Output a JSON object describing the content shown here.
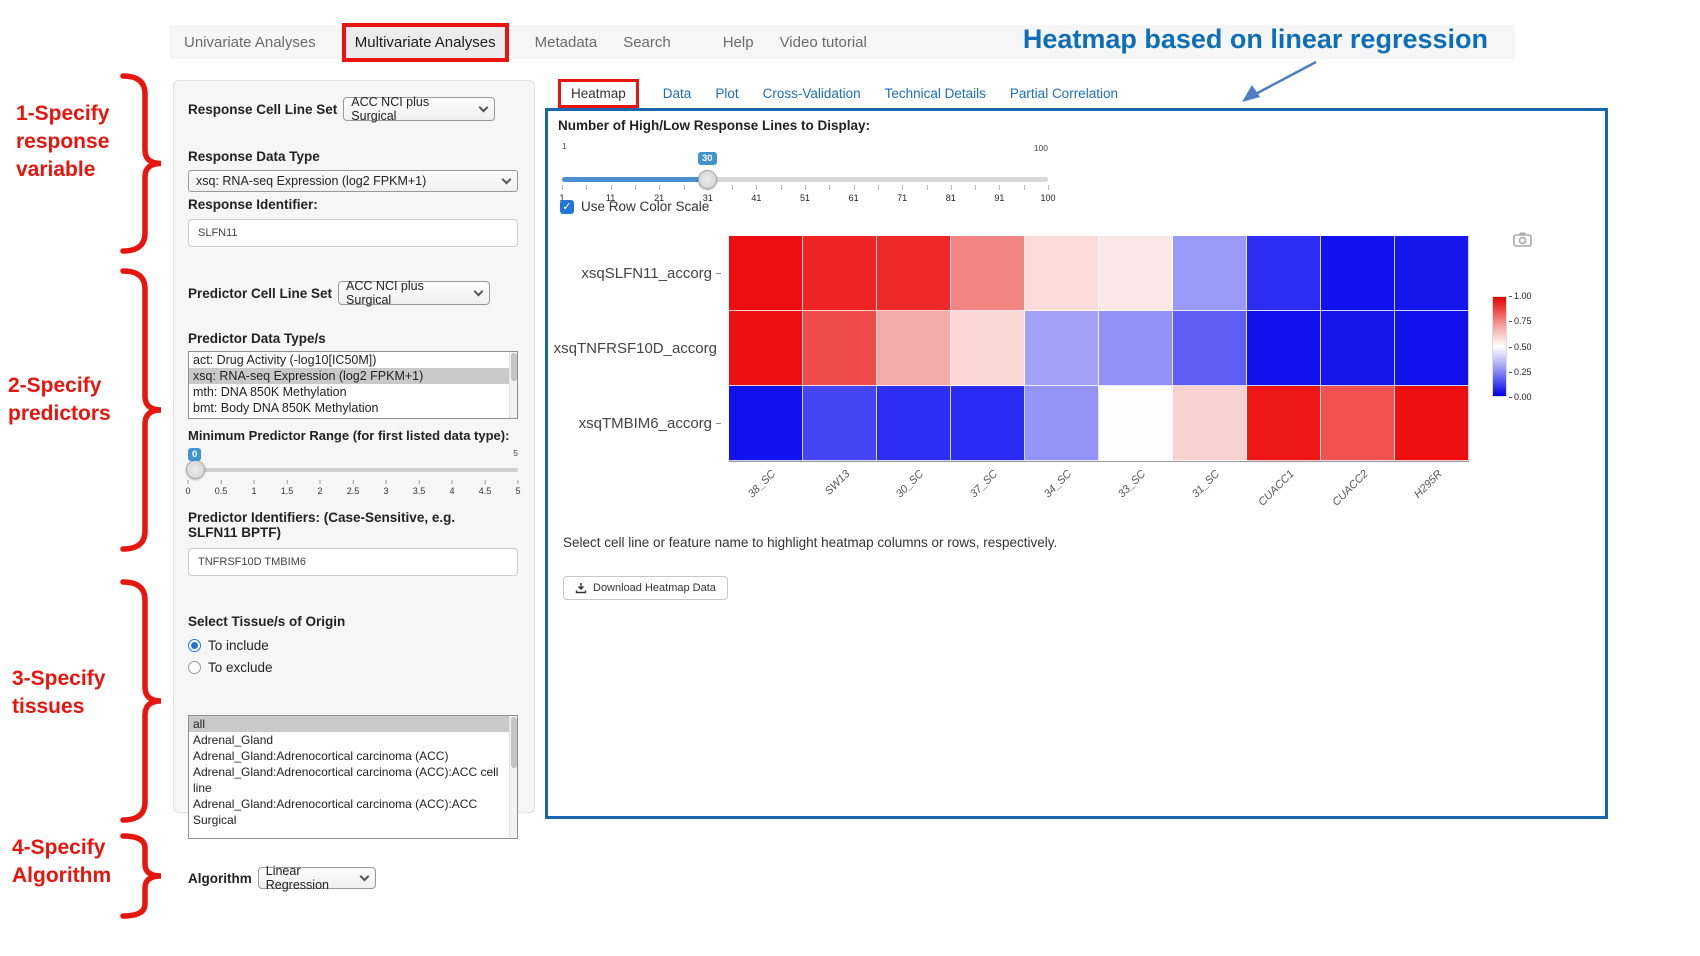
{
  "colors": {
    "annotation_red": "#e8150e",
    "heading_blue": "#0e6fb8",
    "panel_border_blue": "#1766ae",
    "link_blue": "#1b6fba",
    "slider_blue": "#4a8fd2",
    "control_blue": "#2277d6"
  },
  "icons": {
    "check": "✓",
    "camera": "camera",
    "download": "download-arrow",
    "dropdown": "chevron-down"
  },
  "nav": {
    "items": [
      {
        "label": "Univariate Analyses",
        "active": false,
        "boxed": false
      },
      {
        "label": "Multivariate Analyses",
        "active": true,
        "boxed": true
      },
      {
        "label": "Metadata",
        "active": false,
        "boxed": false
      },
      {
        "label": "Search",
        "active": false,
        "boxed": false
      },
      {
        "label": "Help",
        "active": false,
        "boxed": false
      },
      {
        "label": "Video tutorial",
        "active": false,
        "boxed": false
      }
    ]
  },
  "annotations": {
    "heading": "Heatmap based on linear regression",
    "steps": [
      {
        "lines": [
          "1-Specify",
          "response",
          "variable"
        ]
      },
      {
        "lines": [
          "2-Specify",
          "predictors"
        ]
      },
      {
        "lines": [
          "3-Specify",
          "tissues"
        ]
      },
      {
        "lines": [
          "4-Specify",
          "Algorithm"
        ]
      }
    ]
  },
  "sidebar": {
    "response_cell_line_set": {
      "label": "Response Cell Line Set",
      "value": "ACC NCI plus Surgical"
    },
    "response_data_type": {
      "label": "Response Data Type",
      "value": "xsq: RNA-seq Expression (log2 FPKM+1)"
    },
    "response_identifier": {
      "label": "Response Identifier:",
      "value": "SLFN11"
    },
    "predictor_cell_line_set": {
      "label": "Predictor Cell Line Set",
      "value": "ACC NCI plus Surgical"
    },
    "predictor_data_types": {
      "label": "Predictor Data Type/s",
      "options": [
        "act: Drug Activity (-log10[IC50M])",
        "xsq: RNA-seq Expression (log2 FPKM+1)",
        "mth: DNA 850K Methylation",
        "bmt: Body DNA 850K Methylation"
      ],
      "selected_index": 1
    },
    "min_predictor_range": {
      "label": "Minimum Predictor Range (for first listed data type):",
      "value": "0",
      "max_label": "5",
      "ticks": [
        "0",
        "0.5",
        "1",
        "1.5",
        "2",
        "2.5",
        "3",
        "3.5",
        "4",
        "4.5",
        "5"
      ]
    },
    "predictor_identifiers": {
      "label": "Predictor Identifiers: (Case-Sensitive, e.g. SLFN11 BPTF)",
      "value": "TNFRSF10D TMBIM6"
    },
    "tissue": {
      "label": "Select Tissue/s of Origin",
      "radios": [
        {
          "label": "To include",
          "checked": true
        },
        {
          "label": "To exclude",
          "checked": false
        }
      ],
      "options": [
        "all",
        "Adrenal_Gland",
        "Adrenal_Gland:Adrenocortical carcinoma (ACC)",
        "Adrenal_Gland:Adrenocortical carcinoma (ACC):ACC cell line",
        "Adrenal_Gland:Adrenocortical carcinoma (ACC):ACC Surgical"
      ],
      "selected_index": 0
    },
    "algorithm": {
      "label": "Algorithm",
      "value": "Linear Regression"
    }
  },
  "tabs": [
    {
      "label": "Heatmap",
      "active": true,
      "boxed": true
    },
    {
      "label": "Data",
      "active": false,
      "boxed": false
    },
    {
      "label": "Plot",
      "active": false,
      "boxed": false
    },
    {
      "label": "Cross-Validation",
      "active": false,
      "boxed": false
    },
    {
      "label": "Technical Details",
      "active": false,
      "boxed": false
    },
    {
      "label": "Partial Correlation",
      "active": false,
      "boxed": false
    }
  ],
  "main": {
    "slider": {
      "label": "Number of High/Low Response Lines to Display:",
      "min_label": "1",
      "max_label": "100",
      "value": "30",
      "ticks": [
        "1",
        "11",
        "21",
        "31",
        "41",
        "51",
        "61",
        "71",
        "81",
        "91",
        "100"
      ]
    },
    "row_color_checkbox": {
      "label": "Use Row Color Scale",
      "checked": true
    },
    "help_text": "Select cell line or feature name to highlight heatmap columns or rows, respectively.",
    "download_button": "Download Heatmap Data"
  },
  "heatmap": {
    "columns": [
      "38_SC",
      "SW13",
      "30_SC",
      "37_SC",
      "34_SC",
      "33_SC",
      "31_SC",
      "CUACC1",
      "CUACC2",
      "H295R"
    ],
    "rows": [
      {
        "label": "xsqSLFN11_accorg",
        "colors": [
          "#ed0f0f",
          "#ee2323",
          "#ee2727",
          "#f38484",
          "#fbdbd9",
          "#fce8e6",
          "#9a9af8",
          "#2d2df3",
          "#1212ee",
          "#1616ef"
        ]
      },
      {
        "label": "xsqTNFRSF10D_accorg",
        "colors": [
          "#ee1111",
          "#f04b4b",
          "#f5a9a8",
          "#fbd8d6",
          "#a2a2f8",
          "#9191f6",
          "#5e5ef5",
          "#1212ee",
          "#1515ee",
          "#1111ee"
        ]
      },
      {
        "label": "xsqTMBIM6_accorg",
        "colors": [
          "#1111ee",
          "#4545f6",
          "#2d2df3",
          "#2b2bf3",
          "#9494f7",
          "#fffdfd",
          "#f8d2d1",
          "#ee1616",
          "#f05151",
          "#ed0f0f"
        ]
      }
    ],
    "colorbar": {
      "tick_labels": [
        "1.00",
        "0.75",
        "0.50",
        "0.25",
        "0.00"
      ]
    }
  },
  "chart_data": {
    "type": "heatmap",
    "x": [
      "38_SC",
      "SW13",
      "30_SC",
      "37_SC",
      "34_SC",
      "33_SC",
      "31_SC",
      "CUACC1",
      "CUACC2",
      "H295R"
    ],
    "y": [
      "xsqSLFN11_accorg",
      "xsqTNFRSF10D_accorg",
      "xsqTMBIM6_accorg"
    ],
    "cell_colors": [
      [
        "#ed0f0f",
        "#ee2323",
        "#ee2727",
        "#f38484",
        "#fbdbd9",
        "#fce8e6",
        "#9a9af8",
        "#2d2df3",
        "#1212ee",
        "#1616ef"
      ],
      [
        "#ee1111",
        "#f04b4b",
        "#f5a9a8",
        "#fbd8d6",
        "#a2a2f8",
        "#9191f6",
        "#5e5ef5",
        "#1212ee",
        "#1515ee",
        "#1111ee"
      ],
      [
        "#1111ee",
        "#4545f6",
        "#2d2df3",
        "#2b2bf3",
        "#9494f7",
        "#fffdfd",
        "#f8d2d1",
        "#ee1616",
        "#f05151",
        "#ed0f0f"
      ]
    ],
    "colorscale": {
      "low_color": "#0000e6",
      "mid_color": "#ffffff",
      "high_color": "#e60000",
      "range": [
        0,
        1
      ],
      "tick_labels": [
        "1.00",
        "0.75",
        "0.50",
        "0.25",
        "0.00"
      ]
    },
    "legend_position": "right"
  }
}
